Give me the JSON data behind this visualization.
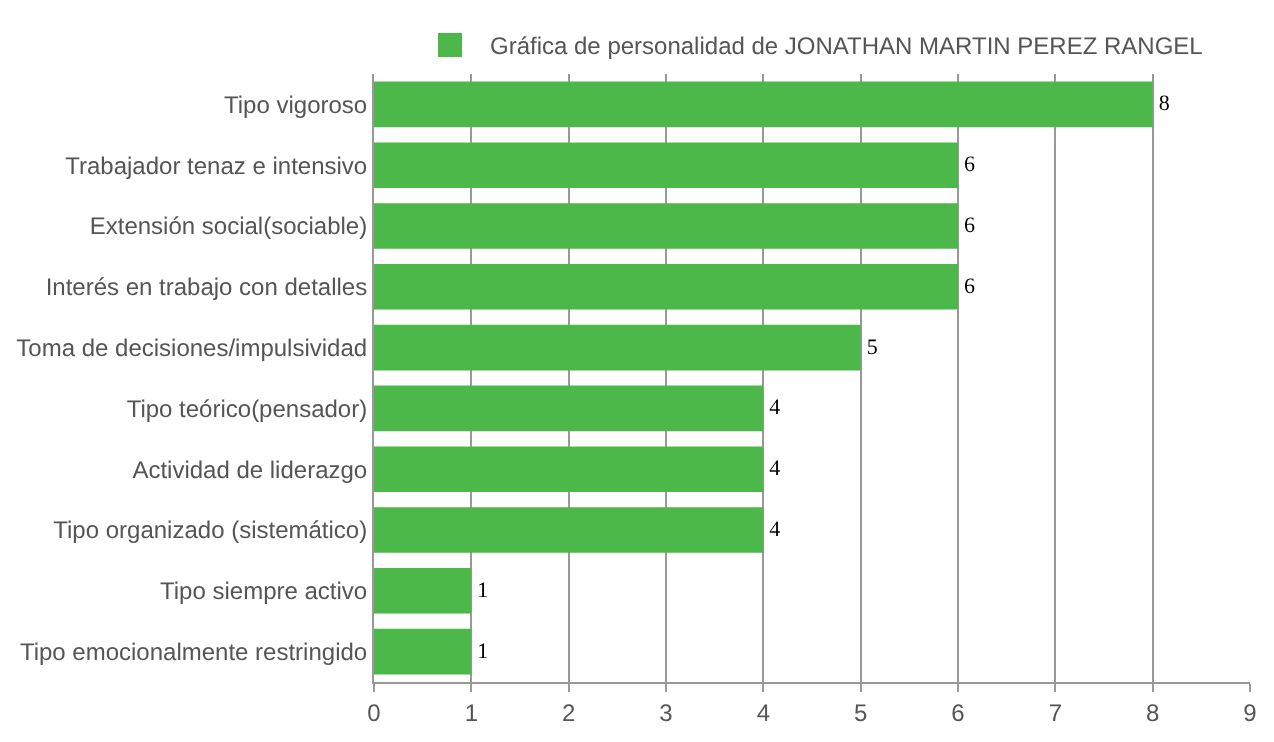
{
  "chart_data": {
    "type": "bar",
    "orientation": "horizontal",
    "categories": [
      "Tipo vigoroso",
      "Trabajador tenaz e intensivo",
      "Extensión social(sociable)",
      "Interés en trabajo con detalles",
      "Toma de decisiones/impulsividad",
      "Tipo teórico(pensador)",
      "Actividad de liderazgo",
      "Tipo organizado (sistemático)",
      "Tipo siempre activo",
      "Tipo emocionalmente restringido"
    ],
    "series": [
      {
        "name": "Gráfica de personalidad de JONATHAN MARTIN PEREZ RANGEL",
        "color": "#4db84a",
        "values": [
          8,
          6,
          6,
          6,
          5,
          4,
          4,
          4,
          1,
          1
        ]
      }
    ],
    "xlim": [
      0,
      9
    ],
    "xticks": [
      0,
      1,
      2,
      3,
      4,
      5,
      6,
      7,
      8,
      9
    ],
    "grid": "x",
    "legend": "top",
    "data_labels": true
  }
}
